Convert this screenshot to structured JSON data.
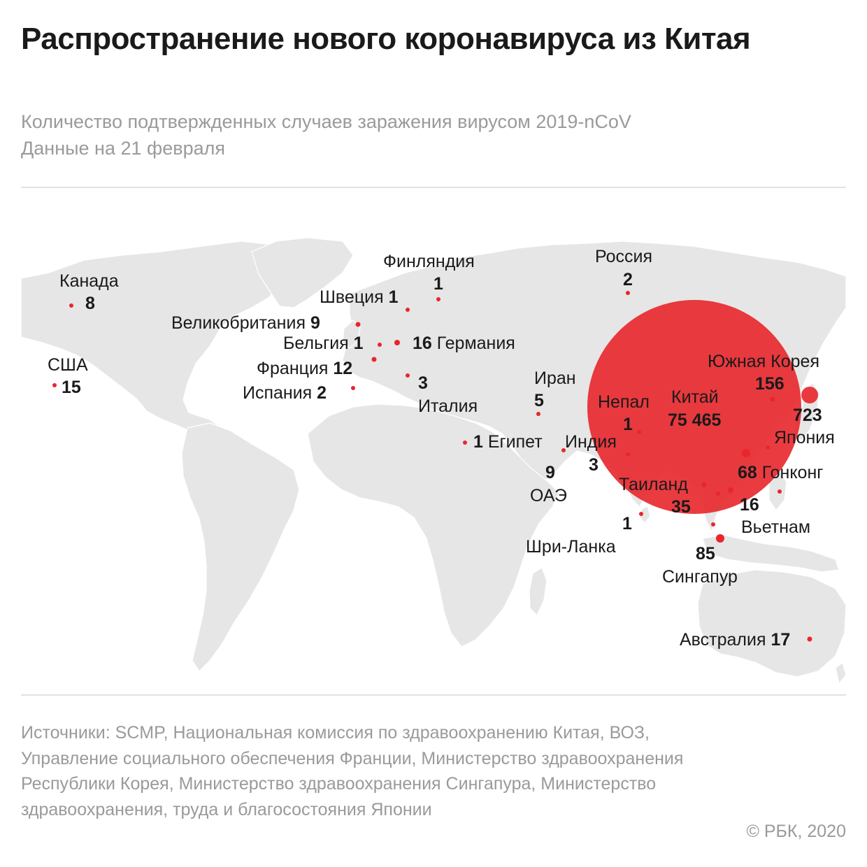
{
  "title": "Распространение нового коронавируса из Китая",
  "subtitle_line1": "Количество подтвержденных случаев заражения вирусом 2019-nCoV",
  "subtitle_line2": "Данные на 21 февраля",
  "colors": {
    "accent": "#e8262b",
    "land": "#e6e6e6",
    "text": "#1a1a1a",
    "muted": "#9a9a9a"
  },
  "countries": [
    {
      "id": "canada",
      "name": "Канада",
      "cases": 8
    },
    {
      "id": "usa",
      "name": "США",
      "cases": 15
    },
    {
      "id": "finland",
      "name": "Финляндия",
      "cases": 1
    },
    {
      "id": "sweden",
      "name": "Швеция",
      "cases": 1
    },
    {
      "id": "uk",
      "name": "Великобритания",
      "cases": 9
    },
    {
      "id": "belgium",
      "name": "Бельгия",
      "cases": 1
    },
    {
      "id": "germany",
      "name": "Германия",
      "cases": 16
    },
    {
      "id": "france",
      "name": "Франция",
      "cases": 12
    },
    {
      "id": "spain",
      "name": "Испания",
      "cases": 2
    },
    {
      "id": "italy",
      "name": "Италия",
      "cases": 3
    },
    {
      "id": "russia",
      "name": "Россия",
      "cases": 2
    },
    {
      "id": "iran",
      "name": "Иран",
      "cases": 5
    },
    {
      "id": "egypt",
      "name": "Египет",
      "cases": 1
    },
    {
      "id": "uae",
      "name": "ОАЭ",
      "cases": 9
    },
    {
      "id": "india",
      "name": "Индия",
      "cases": 3
    },
    {
      "id": "nepal",
      "name": "Непал",
      "cases": 1
    },
    {
      "id": "china",
      "name": "Китай",
      "cases": "75 465"
    },
    {
      "id": "south-korea",
      "name": "Южная Корея",
      "cases": 156
    },
    {
      "id": "japan",
      "name": "Япония",
      "cases": 723
    },
    {
      "id": "hongkong",
      "name": "Гонконг",
      "cases": 68
    },
    {
      "id": "thailand",
      "name": "Таиланд",
      "cases": 35
    },
    {
      "id": "vietnam",
      "name": "Вьетнам",
      "cases": 16
    },
    {
      "id": "srilanka",
      "name": "Шри-Ланка",
      "cases": 1
    },
    {
      "id": "singapore",
      "name": "Сингапур",
      "cases": 85
    },
    {
      "id": "australia",
      "name": "Австралия",
      "cases": 17
    }
  ],
  "sources": "Источники: SCMP, Национальная комиссия по здравоохранению Китая, ВОЗ, Управление социального обеспечения Франции, Министерство здравоохранения Республики Корея, Министерство здравоохранения Сингапура, Министерство здравоохранения, труда и благосостояния Японии",
  "copyright": "© РБК, 2020"
}
